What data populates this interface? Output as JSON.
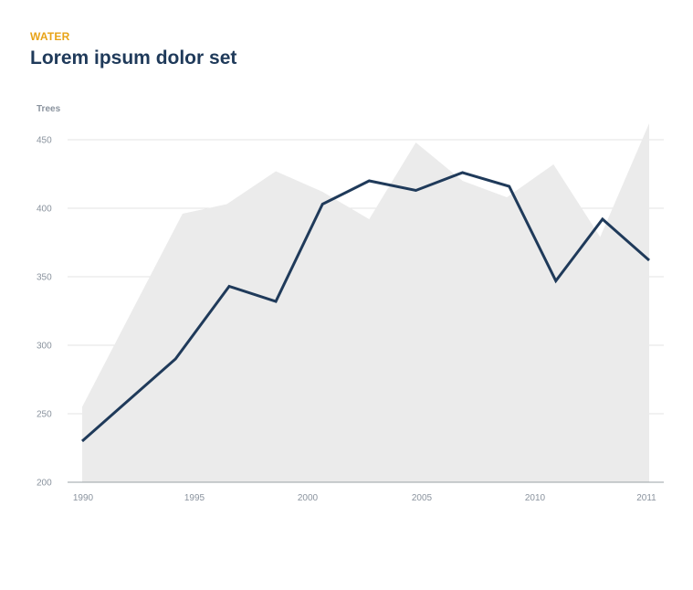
{
  "header": {
    "eyebrow": "WATER",
    "title": "Lorem ipsum dolor set"
  },
  "colors": {
    "eyebrow": "#e8a317",
    "title": "#1f3a5a",
    "line": "#1f3a5a",
    "area": "#ebebeb",
    "grid": "#e3e3e3",
    "axis": "#9aa0a6",
    "tick_label": "#8a939e"
  },
  "chart_data": {
    "type": "line",
    "ylabel": "Trees",
    "xlabel": "",
    "xlim": [
      1990,
      2011
    ],
    "ylim": [
      200,
      450
    ],
    "x_ticks": [
      {
        "value": 1990,
        "label": "1990"
      },
      {
        "value": 1995,
        "label": "1995"
      },
      {
        "value": 2000,
        "label": "2000"
      },
      {
        "value": 2005,
        "label": "2005"
      },
      {
        "value": 2010,
        "label": "2010"
      },
      {
        "value": 2011,
        "label": "2011"
      }
    ],
    "y_ticks": [
      200,
      250,
      300,
      350,
      400,
      450
    ],
    "grid": true,
    "series": [
      {
        "kind": "area",
        "points": [
          [
            1990,
            255
          ],
          [
            1994.3,
            396
          ],
          [
            1996.2,
            403
          ],
          [
            1998.3,
            427
          ],
          [
            2000.3,
            412
          ],
          [
            2002.3,
            392
          ],
          [
            2004.3,
            448
          ],
          [
            2006.3,
            420
          ],
          [
            2008.2,
            408
          ],
          [
            2010.2,
            432
          ],
          [
            2012.2,
            379
          ],
          [
            2014.3,
            462
          ]
        ]
      },
      {
        "kind": "line",
        "points": [
          [
            1990,
            230
          ],
          [
            1994,
            290
          ],
          [
            1996.3,
            343
          ],
          [
            1998.3,
            332
          ],
          [
            2000.3,
            403
          ],
          [
            2002.3,
            420
          ],
          [
            2004.3,
            413
          ],
          [
            2006.3,
            426
          ],
          [
            2008.3,
            416
          ],
          [
            2010.3,
            347
          ],
          [
            2012.3,
            392
          ],
          [
            2014.3,
            362
          ]
        ]
      }
    ]
  }
}
